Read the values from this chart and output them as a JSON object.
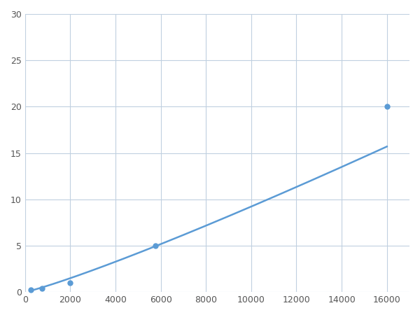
{
  "x": [
    250,
    750,
    2000,
    5750,
    16000
  ],
  "y": [
    0.2,
    0.4,
    1.0,
    5.0,
    20.0
  ],
  "line_color": "#5b9bd5",
  "marker_color": "#5b9bd5",
  "marker_size": 5,
  "line_width": 1.8,
  "xlim": [
    0,
    17000
  ],
  "ylim": [
    0,
    30
  ],
  "xticks": [
    0,
    2000,
    4000,
    6000,
    8000,
    10000,
    12000,
    14000,
    16000
  ],
  "yticks": [
    0,
    5,
    10,
    15,
    20,
    25,
    30
  ],
  "grid_color": "#c0d0e0",
  "background_color": "#ffffff",
  "figsize": [
    6.0,
    4.5
  ],
  "dpi": 100
}
